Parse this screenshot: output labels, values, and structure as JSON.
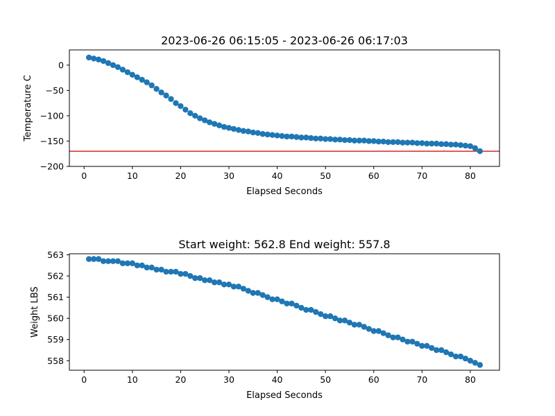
{
  "chart_data": [
    {
      "type": "scatter",
      "title": "2023-06-26 06:15:05 - 2023-06-26 06:17:03",
      "xlabel": "Elapsed Seconds",
      "ylabel": "Temperature C",
      "xlim": [
        -3.05,
        86.05
      ],
      "ylim": [
        -200,
        30
      ],
      "xticks": [
        0,
        10,
        20,
        30,
        40,
        50,
        60,
        70,
        80
      ],
      "yticks": [
        0,
        -50,
        -100,
        -150,
        -200
      ],
      "ytick_labels": [
        "0",
        "−50",
        "−100",
        "−150",
        "−200"
      ],
      "grid": false,
      "marker_color": "#1f77b4",
      "reference_line": {
        "y": -170,
        "color": "#d62728"
      },
      "x": [
        1,
        2,
        3,
        4,
        5,
        6,
        7,
        8,
        9,
        10,
        11,
        12,
        13,
        14,
        15,
        16,
        17,
        18,
        19,
        20,
        21,
        22,
        23,
        24,
        25,
        26,
        27,
        28,
        29,
        30,
        31,
        32,
        33,
        34,
        35,
        36,
        37,
        38,
        39,
        40,
        41,
        42,
        43,
        44,
        45,
        46,
        47,
        48,
        49,
        50,
        51,
        52,
        53,
        54,
        55,
        56,
        57,
        58,
        59,
        60,
        61,
        62,
        63,
        64,
        65,
        66,
        67,
        68,
        69,
        70,
        71,
        72,
        73,
        74,
        75,
        76,
        77,
        78,
        79,
        80,
        81,
        82
      ],
      "y": [
        15,
        13,
        11,
        8,
        4,
        0,
        -4,
        -9,
        -14,
        -19,
        -24,
        -29,
        -34,
        -40,
        -47,
        -54,
        -60,
        -67,
        -75,
        -81,
        -88,
        -95,
        -100,
        -105,
        -109,
        -113,
        -116,
        -119,
        -122,
        -124,
        -126,
        -128,
        -130,
        -131,
        -133,
        -134,
        -136,
        -137,
        -138,
        -139,
        -140,
        -141,
        -141,
        -142,
        -143,
        -143,
        -144,
        -145,
        -145,
        -146,
        -146,
        -147,
        -147,
        -148,
        -148,
        -149,
        -149,
        -149,
        -150,
        -150,
        -151,
        -151,
        -152,
        -152,
        -152,
        -153,
        -153,
        -153,
        -154,
        -154,
        -155,
        -155,
        -155,
        -156,
        -156,
        -157,
        -157,
        -158,
        -159,
        -160,
        -164,
        -170
      ]
    },
    {
      "type": "scatter",
      "title": "Start weight: 562.8 End weight: 557.8",
      "xlabel": "Elapsed Seconds",
      "ylabel": "Weight LBS",
      "xlim": [
        -3.05,
        86.05
      ],
      "ylim": [
        557.55,
        563.05
      ],
      "xticks": [
        0,
        10,
        20,
        30,
        40,
        50,
        60,
        70,
        80
      ],
      "yticks": [
        558,
        559,
        560,
        561,
        562,
        563
      ],
      "ytick_labels": [
        "558",
        "559",
        "560",
        "561",
        "562",
        "563"
      ],
      "grid": false,
      "marker_color": "#1f77b4",
      "x": [
        1,
        2,
        3,
        4,
        5,
        6,
        7,
        8,
        9,
        10,
        11,
        12,
        13,
        14,
        15,
        16,
        17,
        18,
        19,
        20,
        21,
        22,
        23,
        24,
        25,
        26,
        27,
        28,
        29,
        30,
        31,
        32,
        33,
        34,
        35,
        36,
        37,
        38,
        39,
        40,
        41,
        42,
        43,
        44,
        45,
        46,
        47,
        48,
        49,
        50,
        51,
        52,
        53,
        54,
        55,
        56,
        57,
        58,
        59,
        60,
        61,
        62,
        63,
        64,
        65,
        66,
        67,
        68,
        69,
        70,
        71,
        72,
        73,
        74,
        75,
        76,
        77,
        78,
        79,
        80,
        81,
        82
      ],
      "y": [
        562.8,
        562.8,
        562.8,
        562.7,
        562.7,
        562.7,
        562.7,
        562.6,
        562.6,
        562.6,
        562.5,
        562.5,
        562.4,
        562.4,
        562.3,
        562.3,
        562.2,
        562.2,
        562.2,
        562.1,
        562.1,
        562.0,
        561.9,
        561.9,
        561.8,
        561.8,
        561.7,
        561.7,
        561.6,
        561.6,
        561.5,
        561.5,
        561.4,
        561.3,
        561.2,
        561.2,
        561.1,
        561.0,
        560.9,
        560.9,
        560.8,
        560.7,
        560.7,
        560.6,
        560.5,
        560.4,
        560.4,
        560.3,
        560.2,
        560.1,
        560.1,
        560.0,
        559.9,
        559.9,
        559.8,
        559.7,
        559.7,
        559.6,
        559.5,
        559.4,
        559.4,
        559.3,
        559.2,
        559.1,
        559.1,
        559.0,
        558.9,
        558.9,
        558.8,
        558.7,
        558.7,
        558.6,
        558.5,
        558.5,
        558.4,
        558.3,
        558.2,
        558.2,
        558.1,
        558.0,
        557.9,
        557.8
      ]
    }
  ]
}
